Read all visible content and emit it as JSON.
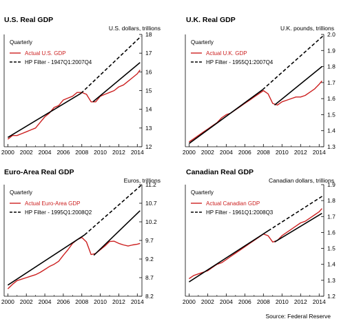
{
  "source": "Source: Federal Reserve",
  "colors": {
    "actual": "#cc1f1f",
    "filter": "#000000",
    "axis": "#000000"
  },
  "chart_data": [
    {
      "type": "line",
      "title": "U.S. Real GDP",
      "unit_label": "U.S. dollars, trillions",
      "frequency_label": "Quarterly",
      "xlim": [
        1999.6,
        2014.5
      ],
      "xticks": [
        2000,
        2002,
        2004,
        2006,
        2008,
        2010,
        2012,
        2014
      ],
      "ylim": [
        12,
        18
      ],
      "yticks": [
        12,
        13,
        14,
        15,
        16,
        17,
        18
      ],
      "series": [
        {
          "name": "Actual U.S. GDP",
          "style": "solid-red",
          "x": [
            2000,
            2000.5,
            2001,
            2001.5,
            2002,
            2002.5,
            2003,
            2003.5,
            2004,
            2004.5,
            2005,
            2005.5,
            2006,
            2006.5,
            2007,
            2007.5,
            2008,
            2008.5,
            2009,
            2009.5,
            2010,
            2010.5,
            2011,
            2011.5,
            2012,
            2012.5,
            2013,
            2013.5,
            2014,
            2014.3
          ],
          "y": [
            12.4,
            12.6,
            12.6,
            12.7,
            12.8,
            12.9,
            13.0,
            13.3,
            13.6,
            13.8,
            14.1,
            14.2,
            14.5,
            14.6,
            14.7,
            14.9,
            14.9,
            14.8,
            14.4,
            14.4,
            14.7,
            14.8,
            14.9,
            15.0,
            15.2,
            15.3,
            15.5,
            15.7,
            15.9,
            16.1
          ]
        },
        {
          "name": "HP Filter - 1947Q1:2007Q4",
          "style": "solid-black",
          "x": [
            2000,
            2007.9
          ],
          "y": [
            12.5,
            14.85
          ]
        },
        {
          "name": "",
          "style": "dashed-black",
          "x": [
            2007.9,
            2014.4
          ],
          "y": [
            14.85,
            17.9
          ]
        },
        {
          "name": "",
          "style": "solid-black",
          "x": [
            2009.2,
            2014.3
          ],
          "y": [
            14.4,
            16.5
          ]
        }
      ]
    },
    {
      "type": "line",
      "title": "U.K. Real GDP",
      "unit_label": "U.K. pounds, trillions",
      "frequency_label": "Quarterly",
      "xlim": [
        1999.6,
        2014.5
      ],
      "xticks": [
        2000,
        2002,
        2004,
        2006,
        2008,
        2010,
        2012,
        2014
      ],
      "ylim": [
        1.3,
        2.0
      ],
      "yticks": [
        1.3,
        1.4,
        1.5,
        1.6,
        1.7,
        1.8,
        1.9,
        2.0
      ],
      "series": [
        {
          "name": "Actual U.K. GDP",
          "style": "solid-red",
          "x": [
            2000,
            2000.5,
            2001,
            2001.5,
            2002,
            2002.5,
            2003,
            2003.5,
            2004,
            2004.5,
            2005,
            2005.5,
            2006,
            2006.5,
            2007,
            2007.5,
            2008,
            2008.5,
            2009,
            2009.5,
            2010,
            2010.5,
            2011,
            2011.5,
            2012,
            2012.5,
            2013,
            2013.5,
            2014,
            2014.3
          ],
          "y": [
            1.33,
            1.35,
            1.37,
            1.39,
            1.41,
            1.43,
            1.45,
            1.48,
            1.5,
            1.51,
            1.53,
            1.55,
            1.57,
            1.59,
            1.61,
            1.63,
            1.65,
            1.63,
            1.57,
            1.56,
            1.58,
            1.59,
            1.6,
            1.61,
            1.61,
            1.62,
            1.64,
            1.66,
            1.69,
            1.71
          ]
        },
        {
          "name": "HP Filter - 1955Q1:2007Q4",
          "style": "solid-black",
          "x": [
            2000,
            2007.9
          ],
          "y": [
            1.32,
            1.655
          ]
        },
        {
          "name": "",
          "style": "dashed-black",
          "x": [
            2007.9,
            2014.4
          ],
          "y": [
            1.655,
            1.99
          ]
        },
        {
          "name": "",
          "style": "solid-black",
          "x": [
            2009.2,
            2014.3
          ],
          "y": [
            1.56,
            1.8
          ]
        }
      ]
    },
    {
      "type": "line",
      "title": "Euro-Area Real GDP",
      "unit_label": "Euros, trillions",
      "frequency_label": "Quarterly",
      "xlim": [
        1999.6,
        2014.5
      ],
      "xticks": [
        2000,
        2002,
        2004,
        2006,
        2008,
        2010,
        2012,
        2014
      ],
      "ylim": [
        8.2,
        11.2
      ],
      "yticks": [
        8.2,
        8.7,
        9.2,
        9.7,
        10.2,
        10.7,
        11.2
      ],
      "series": [
        {
          "name": "Actual Euro-Area GDP",
          "style": "solid-red",
          "x": [
            2000,
            2000.5,
            2001,
            2001.5,
            2002,
            2002.5,
            2003,
            2003.5,
            2004,
            2004.5,
            2005,
            2005.5,
            2006,
            2006.5,
            2007,
            2007.5,
            2008,
            2008.5,
            2009,
            2009.5,
            2010,
            2010.5,
            2011,
            2011.5,
            2012,
            2012.5,
            2013,
            2013.5,
            2014,
            2014.3
          ],
          "y": [
            8.4,
            8.52,
            8.62,
            8.66,
            8.7,
            8.74,
            8.78,
            8.84,
            8.92,
            9.0,
            9.06,
            9.14,
            9.3,
            9.45,
            9.62,
            9.72,
            9.78,
            9.66,
            9.32,
            9.35,
            9.45,
            9.55,
            9.67,
            9.68,
            9.62,
            9.58,
            9.55,
            9.58,
            9.6,
            9.62
          ]
        },
        {
          "name": "HP Filter - 1995Q1:2008Q2",
          "style": "solid-black",
          "x": [
            2000,
            2008.3
          ],
          "y": [
            8.5,
            9.85
          ]
        },
        {
          "name": "",
          "style": "dashed-black",
          "x": [
            2008.3,
            2014.4
          ],
          "y": [
            9.85,
            11.18
          ]
        },
        {
          "name": "",
          "style": "solid-black",
          "x": [
            2009.3,
            2014.3
          ],
          "y": [
            9.3,
            10.5
          ]
        }
      ]
    },
    {
      "type": "line",
      "title": "Canadian Real GDP",
      "unit_label": "Canadian dollars, trillions",
      "frequency_label": "Quarterly",
      "xlim": [
        1999.6,
        2014.5
      ],
      "xticks": [
        2000,
        2002,
        2004,
        2006,
        2008,
        2010,
        2012,
        2014
      ],
      "ylim": [
        1.2,
        1.9
      ],
      "yticks": [
        1.2,
        1.3,
        1.4,
        1.5,
        1.6,
        1.7,
        1.8,
        1.9
      ],
      "series": [
        {
          "name": "Actual Canadian GDP",
          "style": "solid-red",
          "x": [
            2000,
            2000.5,
            2001,
            2001.5,
            2002,
            2002.5,
            2003,
            2003.5,
            2004,
            2004.5,
            2005,
            2005.5,
            2006,
            2006.5,
            2007,
            2007.5,
            2008,
            2008.5,
            2009,
            2009.5,
            2010,
            2010.5,
            2011,
            2011.5,
            2012,
            2012.5,
            2013,
            2013.5,
            2014,
            2014.3
          ],
          "y": [
            1.31,
            1.33,
            1.34,
            1.35,
            1.36,
            1.38,
            1.4,
            1.41,
            1.43,
            1.45,
            1.47,
            1.49,
            1.51,
            1.53,
            1.55,
            1.57,
            1.59,
            1.58,
            1.54,
            1.55,
            1.58,
            1.6,
            1.62,
            1.64,
            1.66,
            1.67,
            1.69,
            1.71,
            1.73,
            1.75
          ]
        },
        {
          "name": "HP Filter - 1961Q1:2008Q3",
          "style": "solid-black",
          "x": [
            2000,
            2008.5
          ],
          "y": [
            1.29,
            1.61
          ]
        },
        {
          "name": "",
          "style": "dashed-black",
          "x": [
            2008.5,
            2014.4
          ],
          "y": [
            1.61,
            1.83
          ]
        },
        {
          "name": "",
          "style": "solid-black",
          "x": [
            2009.2,
            2014.3
          ],
          "y": [
            1.54,
            1.72
          ]
        }
      ]
    }
  ]
}
